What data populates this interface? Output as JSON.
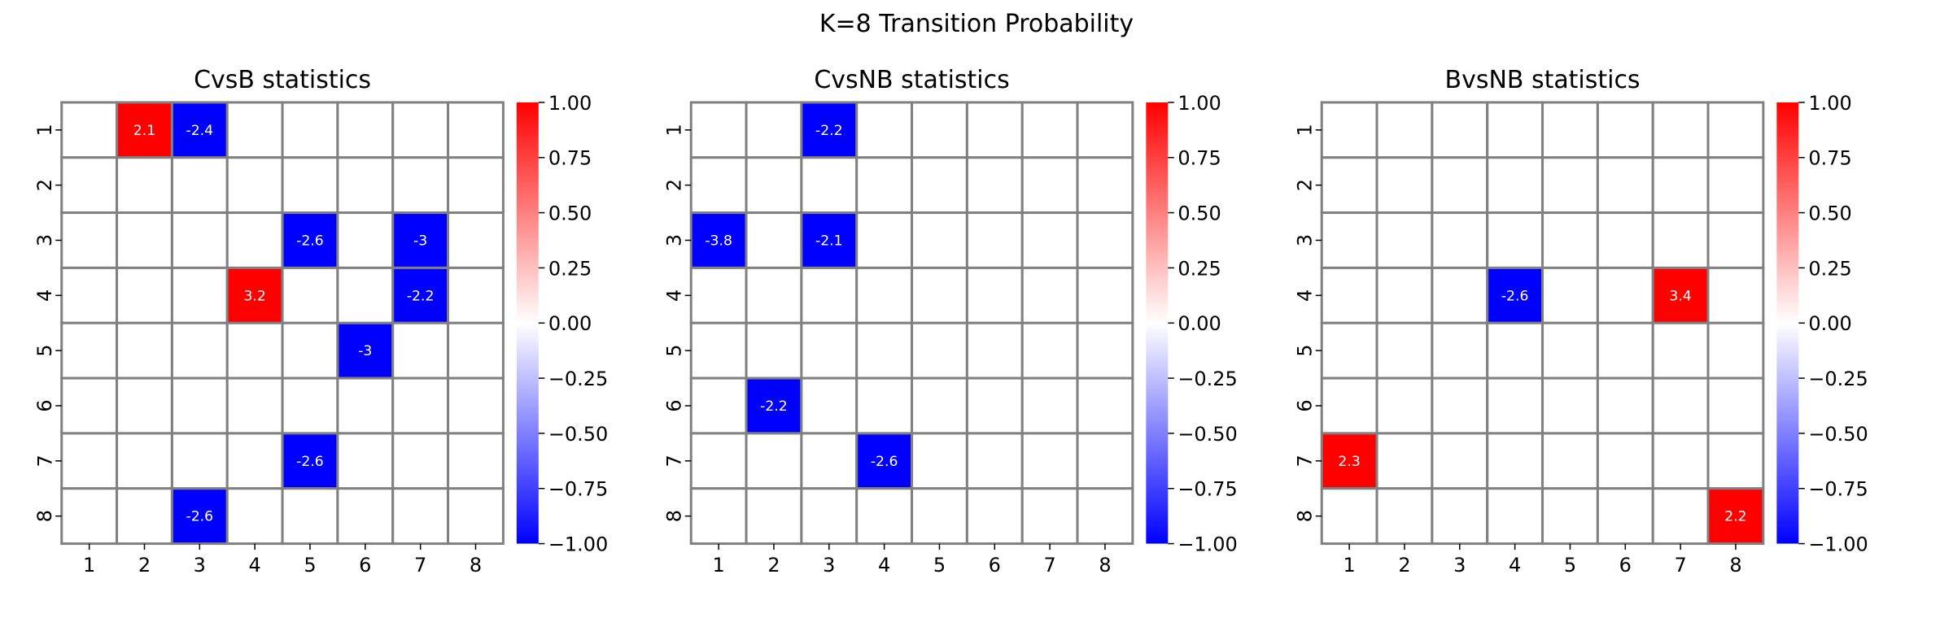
{
  "figure_title": "K=8 Transition Probability",
  "chart_data": [
    {
      "type": "heatmap",
      "title": "CvsB statistics",
      "x_ticks": [
        "1",
        "2",
        "3",
        "4",
        "5",
        "6",
        "7",
        "8"
      ],
      "y_ticks": [
        "1",
        "2",
        "3",
        "4",
        "5",
        "6",
        "7",
        "8"
      ],
      "cells": [
        {
          "row": 1,
          "col": 2,
          "value": 2.1
        },
        {
          "row": 1,
          "col": 3,
          "value": -2.4
        },
        {
          "row": 3,
          "col": 5,
          "value": -2.6
        },
        {
          "row": 3,
          "col": 7,
          "value": -3
        },
        {
          "row": 4,
          "col": 4,
          "value": 3.2
        },
        {
          "row": 4,
          "col": 7,
          "value": -2.2
        },
        {
          "row": 5,
          "col": 6,
          "value": -3
        },
        {
          "row": 7,
          "col": 5,
          "value": -2.6
        },
        {
          "row": 8,
          "col": 3,
          "value": -2.6
        }
      ],
      "colorbar": {
        "min": -1.0,
        "max": 1.0,
        "colormap": "bwr",
        "ticks": [
          "1.00",
          "0.75",
          "0.50",
          "0.25",
          "0.00",
          "−0.25",
          "−0.50",
          "−0.75",
          "−1.00"
        ]
      }
    },
    {
      "type": "heatmap",
      "title": "CvsNB statistics",
      "x_ticks": [
        "1",
        "2",
        "3",
        "4",
        "5",
        "6",
        "7",
        "8"
      ],
      "y_ticks": [
        "1",
        "2",
        "3",
        "4",
        "5",
        "6",
        "7",
        "8"
      ],
      "cells": [
        {
          "row": 1,
          "col": 3,
          "value": -2.2
        },
        {
          "row": 3,
          "col": 1,
          "value": -3.8
        },
        {
          "row": 3,
          "col": 3,
          "value": -2.1
        },
        {
          "row": 6,
          "col": 2,
          "value": -2.2
        },
        {
          "row": 7,
          "col": 4,
          "value": -2.6
        }
      ],
      "colorbar": {
        "min": -1.0,
        "max": 1.0,
        "colormap": "bwr",
        "ticks": [
          "1.00",
          "0.75",
          "0.50",
          "0.25",
          "0.00",
          "−0.25",
          "−0.50",
          "−0.75",
          "−1.00"
        ]
      }
    },
    {
      "type": "heatmap",
      "title": "BvsNB statistics",
      "x_ticks": [
        "1",
        "2",
        "3",
        "4",
        "5",
        "6",
        "7",
        "8"
      ],
      "y_ticks": [
        "1",
        "2",
        "3",
        "4",
        "5",
        "6",
        "7",
        "8"
      ],
      "cells": [
        {
          "row": 4,
          "col": 4,
          "value": -2.6
        },
        {
          "row": 4,
          "col": 7,
          "value": 3.4
        },
        {
          "row": 7,
          "col": 1,
          "value": 2.3
        },
        {
          "row": 8,
          "col": 8,
          "value": 2.2
        }
      ],
      "colorbar": {
        "min": -1.0,
        "max": 1.0,
        "colormap": "bwr",
        "ticks": [
          "1.00",
          "0.75",
          "0.50",
          "0.25",
          "0.00",
          "−0.25",
          "−0.50",
          "−0.75",
          "−1.00"
        ]
      }
    }
  ],
  "colors": {
    "positive": "#ff0000",
    "negative": "#0000ff",
    "grid": "#808080",
    "empty": "#ffffff"
  }
}
